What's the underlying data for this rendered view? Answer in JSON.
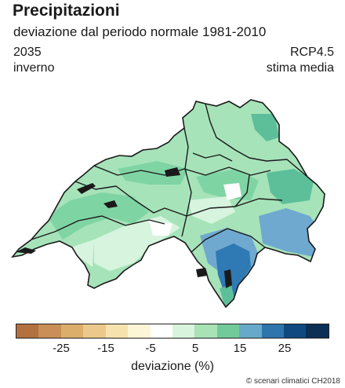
{
  "header": {
    "title": "Precipitazioni",
    "subtitle": "deviazione dal periodo normale 1981-2010",
    "year": "2035",
    "season": "inverno",
    "scenario": "RCP4.5",
    "estimate": "stima media"
  },
  "legend": {
    "colors": [
      "#b2713f",
      "#c98f56",
      "#dcae6c",
      "#ecc98a",
      "#f6e2ac",
      "#fdf6d6",
      "#ffffff",
      "#d9f4dc",
      "#a8e2b5",
      "#72c99a",
      "#67a9c9",
      "#2e74ad",
      "#10497f",
      "#0c2f55"
    ],
    "ticks": [
      "-25",
      "-15",
      "-5",
      "5",
      "15",
      "25"
    ],
    "unit": "deviazione (%)"
  },
  "map": {
    "region": "Svizzera",
    "colors": {
      "base": "#a6e3b9",
      "light": "#d7f4de",
      "medium": "#7fd4a4",
      "teal": "#5cbf99",
      "blue": "#6fa9cf",
      "dark_blue": "#2f79b4",
      "white": "#ffffff",
      "border": "#1a1a1a"
    }
  },
  "credit": "© scenari climatici CH2018"
}
